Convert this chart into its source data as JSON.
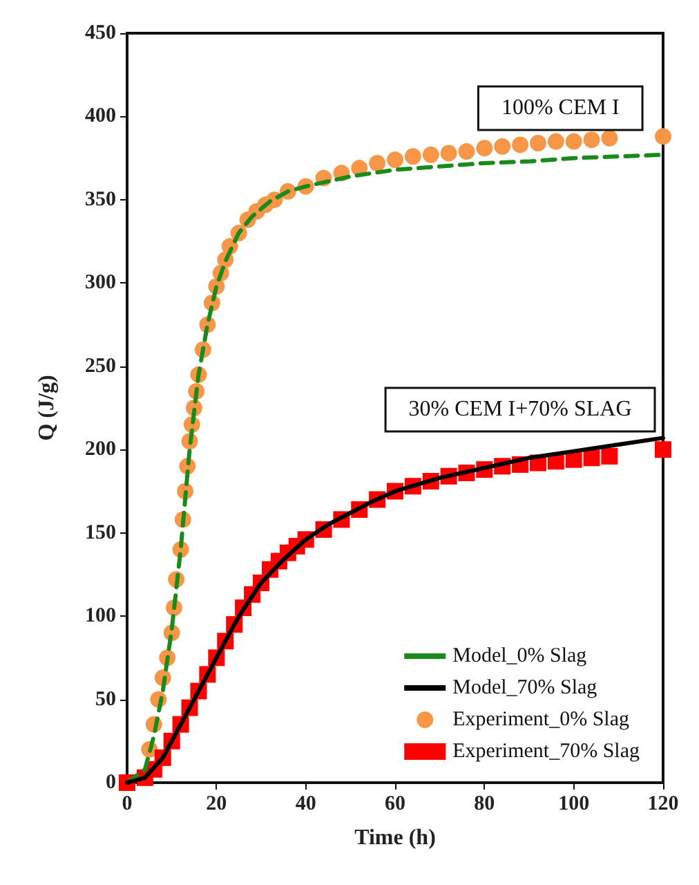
{
  "chart_data": {
    "type": "scatter",
    "xlabel": "Time (h)",
    "ylabel": "Q (J/g)",
    "xlim": [
      0,
      120
    ],
    "ylim": [
      0,
      450
    ],
    "xticks": [
      0,
      20,
      40,
      60,
      80,
      100,
      120
    ],
    "yticks": [
      0,
      50,
      100,
      150,
      200,
      250,
      300,
      350,
      400,
      450
    ],
    "grid": false,
    "legend": "bottom right",
    "annotations": [
      "100% CEM I",
      "30% CEM I+70% SLAG"
    ],
    "series": [
      {
        "name": "Model_0% Slag",
        "type": "line",
        "line_style": "dashed",
        "marker": "none",
        "color": "#1a8a1a",
        "x": [
          0,
          4,
          6,
          8,
          10,
          12,
          14,
          16,
          18,
          20,
          22,
          25,
          28,
          32,
          36,
          40,
          45,
          50,
          55,
          60,
          70,
          80,
          90,
          100,
          110,
          120
        ],
        "values": [
          0,
          8,
          28,
          55,
          92,
          140,
          200,
          245,
          275,
          298,
          313,
          330,
          340,
          349,
          355,
          358,
          361,
          364,
          366,
          368,
          370,
          372,
          373,
          375,
          376,
          377
        ]
      },
      {
        "name": "Model_70% Slag",
        "type": "line",
        "line_style": "solid",
        "marker": "none",
        "color": "#000000",
        "x": [
          0,
          4,
          8,
          10,
          12,
          14,
          16,
          18,
          20,
          22,
          24,
          26,
          28,
          30,
          35,
          40,
          45,
          50,
          55,
          60,
          70,
          80,
          90,
          100,
          110,
          120
        ],
        "values": [
          0,
          3,
          15,
          25,
          35,
          45,
          55,
          65,
          75,
          85,
          95,
          104,
          112,
          120,
          134,
          146,
          155,
          162,
          169,
          175,
          183,
          189,
          195,
          199,
          203,
          207
        ]
      },
      {
        "name": "Experiment_0% Slag",
        "marker": "circle",
        "color": "#f79646",
        "x": [
          5,
          6,
          7,
          8,
          9,
          10,
          10.5,
          11,
          12,
          12.5,
          13,
          13.5,
          14,
          14.5,
          15,
          15.5,
          16,
          17,
          18,
          19,
          20,
          21,
          22,
          23,
          25,
          27,
          29,
          31,
          33,
          36,
          40,
          44,
          48,
          52,
          56,
          60,
          64,
          68,
          72,
          76,
          80,
          84,
          88,
          92,
          96,
          100,
          104,
          108,
          120
        ],
        "values": [
          20,
          35,
          50,
          63,
          75,
          90,
          105,
          122,
          140,
          158,
          175,
          190,
          205,
          215,
          225,
          235,
          245,
          260,
          275,
          288,
          298,
          306,
          314,
          322,
          330,
          338,
          343,
          347,
          350,
          355,
          358,
          363,
          366,
          369,
          372,
          374,
          376,
          377,
          378,
          379,
          381,
          382,
          383,
          384,
          385,
          385,
          386,
          387,
          388
        ]
      },
      {
        "name": "Experiment_70% Slag",
        "marker": "square",
        "color": "#ff0000",
        "x": [
          0,
          4,
          6,
          8,
          10,
          12,
          14,
          16,
          18,
          20,
          22,
          24,
          26,
          28,
          30,
          32,
          34,
          36,
          38,
          40,
          44,
          48,
          52,
          56,
          60,
          64,
          68,
          72,
          76,
          80,
          84,
          88,
          92,
          96,
          100,
          104,
          108,
          120
        ],
        "values": [
          0,
          3,
          8,
          15,
          25,
          35,
          45,
          55,
          65,
          75,
          85,
          95,
          105,
          113,
          120,
          128,
          133,
          138,
          142,
          146,
          152,
          158,
          164,
          170,
          175,
          178,
          181,
          184,
          186,
          188,
          190,
          191,
          192,
          193,
          194,
          195,
          196,
          200
        ]
      }
    ]
  }
}
